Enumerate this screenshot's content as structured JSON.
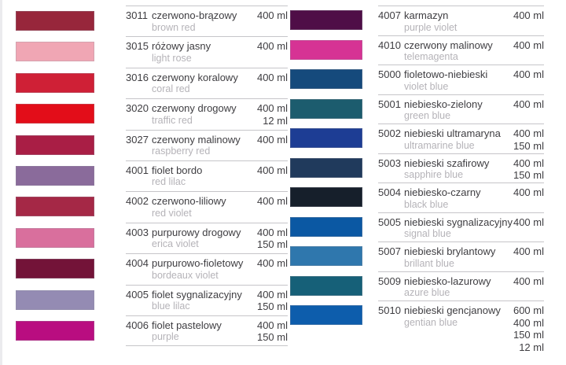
{
  "page_background": "#ffffff",
  "colors": {
    "text": "#3e3d41",
    "subtext": "#b5b3b8",
    "divider": "#c6c5c9",
    "edge_strip": "#ebebee"
  },
  "columns": [
    {
      "rows": [
        {
          "code": "3011",
          "name_pl": "czerwono-brązowy",
          "name_en": "brown red",
          "volumes": [
            "400 ml"
          ],
          "swatch": "#97263b"
        },
        {
          "code": "3015",
          "name_pl": "różowy jasny",
          "name_en": "light rose",
          "volumes": [
            "400 ml"
          ],
          "swatch": "#f0a6b4"
        },
        {
          "code": "3016",
          "name_pl": "czerwony koralowy",
          "name_en": "coral red",
          "volumes": [
            "400 ml"
          ],
          "swatch": "#cf2036"
        },
        {
          "code": "3020",
          "name_pl": "czerwony drogowy",
          "name_en": "traffic red",
          "volumes": [
            "400 ml",
            "12 ml"
          ],
          "swatch": "#e30d19"
        },
        {
          "code": "3027",
          "name_pl": "czerwony malinowy",
          "name_en": "raspberry red",
          "volumes": [
            "400 ml"
          ],
          "swatch": "#a91e45"
        },
        {
          "code": "4001",
          "name_pl": "fiolet bordo",
          "name_en": "red lilac",
          "volumes": [
            "400 ml"
          ],
          "swatch": "#8a6b9b"
        },
        {
          "code": "4002",
          "name_pl": "czerwono-liliowy",
          "name_en": "red violet",
          "volumes": [
            "400 ml"
          ],
          "swatch": "#a52846"
        },
        {
          "code": "4003",
          "name_pl": "purpurowy drogowy",
          "name_en": "erica violet",
          "volumes": [
            "400 ml",
            "150 ml"
          ],
          "swatch": "#d96f9d"
        },
        {
          "code": "4004",
          "name_pl": "purpurowo-fioletowy",
          "name_en": "bordeaux violet",
          "volumes": [
            "400 ml"
          ],
          "swatch": "#731338"
        },
        {
          "code": "4005",
          "name_pl": "fiolet sygnalizacyjny",
          "name_en": "blue lilac",
          "volumes": [
            "400 ml",
            "150 ml"
          ],
          "swatch": "#948bb3"
        },
        {
          "code": "4006",
          "name_pl": "fiolet pastelowy",
          "name_en": "purple",
          "volumes": [
            "400 ml",
            "150 ml"
          ],
          "swatch": "#b90d80"
        }
      ]
    },
    {
      "rows": [
        {
          "code": "4007",
          "name_pl": "karmazyn",
          "name_en": "purple violet",
          "volumes": [
            "400 ml"
          ],
          "swatch": "#4f0e47"
        },
        {
          "code": "4010",
          "name_pl": "czerwony malinowy",
          "name_en": "telemagenta",
          "volumes": [
            "400 ml"
          ],
          "swatch": "#d63394"
        },
        {
          "code": "5000",
          "name_pl": "fioletowo-niebieski",
          "name_en": "violet blue",
          "volumes": [
            "400 ml"
          ],
          "swatch": "#154a7c"
        },
        {
          "code": "5001",
          "name_pl": "niebiesko-zielony",
          "name_en": "green blue",
          "volumes": [
            "400 ml"
          ],
          "swatch": "#1c5c6e"
        },
        {
          "code": "5002",
          "name_pl": "niebieski ultramaryna",
          "name_en": "ultramarine blue",
          "volumes": [
            "400 ml",
            "150 ml"
          ],
          "swatch": "#1d3d94"
        },
        {
          "code": "5003",
          "name_pl": "niebieski szafirowy",
          "name_en": "sapphire blue",
          "volumes": [
            "400 ml",
            "150 ml"
          ],
          "swatch": "#203a5c"
        },
        {
          "code": "5004",
          "name_pl": "niebiesko-czarny",
          "name_en": "black blue",
          "volumes": [
            "400 ml"
          ],
          "swatch": "#161f2b"
        },
        {
          "code": "5005",
          "name_pl": "niebieski sygnalizacyjny",
          "name_en": "signal blue",
          "volumes": [
            "400 ml"
          ],
          "swatch": "#0b58a3"
        },
        {
          "code": "5007",
          "name_pl": "niebieski brylantowy",
          "name_en": "brillant blue",
          "volumes": [
            "400 ml"
          ],
          "swatch": "#2f77ad"
        },
        {
          "code": "5009",
          "name_pl": "niebiesko-lazurowy",
          "name_en": "azure blue",
          "volumes": [
            "400 ml"
          ],
          "swatch": "#166078"
        },
        {
          "code": "5010",
          "name_pl": "niebieski gencjanowy",
          "name_en": "gentian blue",
          "volumes": [
            "600 ml",
            "400 ml",
            "150 ml",
            "12 ml"
          ],
          "swatch": "#0d5dac"
        }
      ]
    }
  ]
}
